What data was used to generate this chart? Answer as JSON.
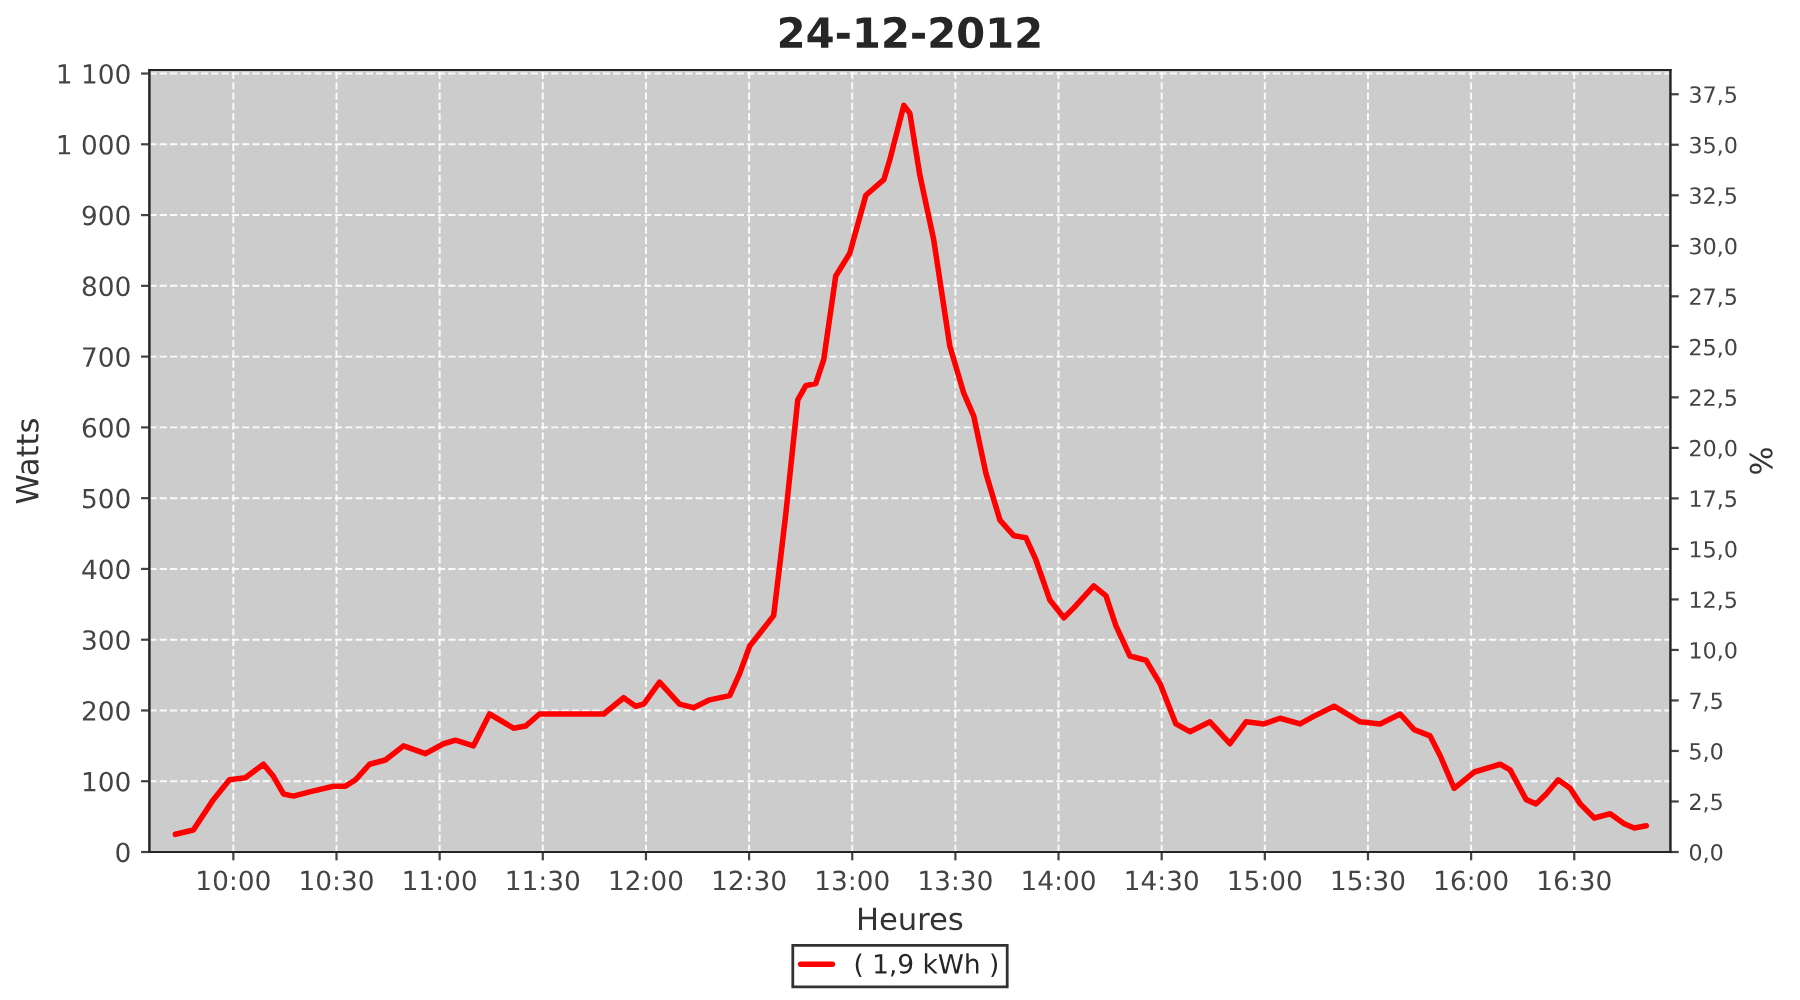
{
  "chart_data": {
    "type": "line",
    "title": "24-12-2012",
    "xlabel": "Heures",
    "ylabel": "Watts",
    "y2label": "%",
    "xlim": [
      9.593,
      16.966
    ],
    "xticks": [
      {
        "value": 10,
        "label": "10:00"
      },
      {
        "value": 10.5,
        "label": "10:30"
      },
      {
        "value": 11,
        "label": "11:00"
      },
      {
        "value": 11.5,
        "label": "11:30"
      },
      {
        "value": 12,
        "label": "12:00"
      },
      {
        "value": 12.5,
        "label": "12:30"
      },
      {
        "value": 13,
        "label": "13:00"
      },
      {
        "value": 13.5,
        "label": "13:30"
      },
      {
        "value": 14,
        "label": "14:00"
      },
      {
        "value": 14.5,
        "label": "14:30"
      },
      {
        "value": 15,
        "label": "15:00"
      },
      {
        "value": 15.5,
        "label": "15:30"
      },
      {
        "value": 16,
        "label": "16:00"
      },
      {
        "value": 16.5,
        "label": "16:30"
      }
    ],
    "ylim": [
      0,
      1105
    ],
    "yticks": [
      0,
      100,
      200,
      300,
      400,
      500,
      600,
      700,
      800,
      900,
      {
        "value": 1000,
        "label": "1 000"
      },
      {
        "value": 1100,
        "label": "1 100"
      }
    ],
    "y2lim": [
      0,
      38.7
    ],
    "y2ticks": [
      {
        "value": 0,
        "label": "0,0"
      },
      {
        "value": 2.5,
        "label": "2,5"
      },
      {
        "value": 5,
        "label": "5,0"
      },
      {
        "value": 7.5,
        "label": "7,5"
      },
      {
        "value": 10,
        "label": "10,0"
      },
      {
        "value": 12.5,
        "label": "12,5"
      },
      {
        "value": 15,
        "label": "15,0"
      },
      {
        "value": 17.5,
        "label": "17,5"
      },
      {
        "value": 20,
        "label": "20,0"
      },
      {
        "value": 22.5,
        "label": "22,5"
      },
      {
        "value": 25,
        "label": "25,0"
      },
      {
        "value": 27.5,
        "label": "27,5"
      },
      {
        "value": 30,
        "label": "30,0"
      },
      {
        "value": 32.5,
        "label": "32,5"
      },
      {
        "value": 35,
        "label": "35,0"
      },
      {
        "value": 37.5,
        "label": "37,5"
      }
    ],
    "grid": true,
    "legend": "bottom",
    "marker": "none",
    "line_style": "solid",
    "series": [
      {
        "name": "( 1,9 kWh )",
        "color": "#ff0000",
        "x": [
          9.719,
          9.806,
          9.903,
          9.981,
          10.058,
          10.146,
          10.194,
          10.243,
          10.291,
          10.369,
          10.485,
          10.543,
          10.592,
          10.66,
          10.737,
          10.825,
          10.931,
          11.019,
          11.077,
          11.164,
          11.242,
          11.358,
          11.416,
          11.484,
          11.795,
          11.892,
          11.95,
          11.989,
          12.066,
          12.163,
          12.231,
          12.309,
          12.406,
          12.454,
          12.503,
          12.619,
          12.648,
          12.678,
          12.736,
          12.775,
          12.823,
          12.862,
          12.92,
          12.988,
          13.066,
          13.153,
          13.182,
          13.25,
          13.279,
          13.328,
          13.395,
          13.473,
          13.541,
          13.589,
          13.648,
          13.716,
          13.783,
          13.842,
          13.89,
          13.958,
          14.026,
          14.074,
          14.171,
          14.23,
          14.278,
          14.346,
          14.424,
          14.492,
          14.569,
          14.637,
          14.734,
          14.831,
          14.909,
          14.996,
          15.074,
          15.171,
          15.239,
          15.336,
          15.462,
          15.559,
          15.656,
          15.724,
          15.801,
          15.85,
          15.918,
          16.015,
          16.141,
          16.189,
          16.267,
          16.315,
          16.364,
          16.422,
          16.48,
          16.529,
          16.597,
          16.674,
          16.742,
          16.791,
          16.849
        ],
        "values": [
          25,
          31,
          74,
          102,
          105,
          124,
          107,
          82,
          79,
          85,
          93,
          93,
          102,
          124,
          130,
          150,
          139,
          153,
          158,
          150,
          195,
          175,
          178,
          195,
          195,
          218,
          206,
          209,
          240,
          209,
          204,
          215,
          221,
          252,
          291,
          334,
          404,
          478,
          639,
          659,
          662,
          696,
          814,
          846,
          928,
          950,
          978,
          1055,
          1044,
          956,
          865,
          715,
          648,
          616,
          535,
          469,
          447,
          444,
          413,
          356,
          331,
          345,
          376,
          362,
          320,
          277,
          271,
          238,
          181,
          170,
          184,
          153,
          184,
          181,
          189,
          181,
          192,
          206,
          184,
          181,
          195,
          173,
          164,
          136,
          90,
          113,
          124,
          116,
          74,
          68,
          82,
          102,
          90,
          68,
          48,
          54,
          40,
          34,
          37
        ]
      }
    ]
  }
}
